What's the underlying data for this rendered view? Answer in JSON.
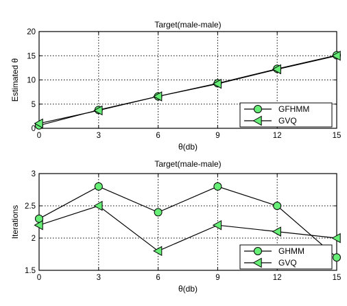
{
  "chart_data": [
    {
      "type": "line",
      "title": "Target(male-male)",
      "xlabel": "θ(db)",
      "ylabel": "Estimated θ",
      "x": [
        0,
        3,
        6,
        9,
        12,
        15
      ],
      "xlim": [
        0,
        15
      ],
      "ylim": [
        0,
        20
      ],
      "xticks": [
        0,
        3,
        6,
        9,
        12,
        15
      ],
      "yticks": [
        0,
        5,
        10,
        15,
        20
      ],
      "grid": true,
      "legend_position": "bottom-right",
      "series": [
        {
          "name": "GFHMM",
          "marker": "circle",
          "values": [
            0.6,
            3.8,
            6.6,
            9.3,
            12.3,
            15.1
          ],
          "color": "#000000",
          "marker_color": "#66ee77"
        },
        {
          "name": "GVQ",
          "marker": "triangle-left",
          "values": [
            1.0,
            3.7,
            6.6,
            9.2,
            12.2,
            15.0
          ],
          "color": "#000000",
          "marker_color": "#66ee77"
        }
      ]
    },
    {
      "type": "line",
      "title": "Target(male-male)",
      "xlabel": "θ(db)",
      "ylabel": "Iterations",
      "x": [
        0,
        3,
        6,
        9,
        12,
        15
      ],
      "xlim": [
        0,
        15
      ],
      "ylim": [
        1.5,
        3
      ],
      "xticks": [
        0,
        3,
        6,
        9,
        12,
        15
      ],
      "yticks": [
        1.5,
        2,
        2.5,
        3
      ],
      "grid": true,
      "legend_position": "bottom-right",
      "series": [
        {
          "name": "GHMM",
          "marker": "circle",
          "values": [
            2.3,
            2.8,
            2.4,
            2.8,
            2.5,
            1.7
          ],
          "color": "#000000",
          "marker_color": "#66ee77"
        },
        {
          "name": "GVQ",
          "marker": "triangle-left",
          "values": [
            2.2,
            2.5,
            1.8,
            2.2,
            2.1,
            2.0
          ],
          "color": "#000000",
          "marker_color": "#66ee77"
        }
      ]
    }
  ]
}
